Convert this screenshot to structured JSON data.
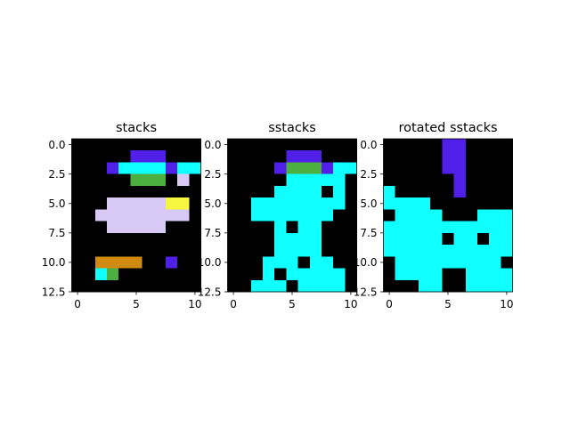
{
  "palette": {
    "0": "#000000",
    "1": "#5020e8",
    "2": "#10ffff",
    "3": "#d8c8f4",
    "4": "#4caf40",
    "5": "#f6f640",
    "6": "#3a88f0",
    "7": "#b0207e",
    "8": "#2c69ae",
    "9": "#d08a10"
  },
  "chart_data": [
    {
      "type": "heatmap",
      "title": "stacks",
      "xlim": [
        -0.5,
        10.5
      ],
      "ylim": [
        12.5,
        -0.5
      ],
      "xticks": [
        0,
        5,
        10
      ],
      "xtick_labels": [
        "0",
        "5",
        "10"
      ],
      "yticks": [
        0,
        2.5,
        5,
        7.5,
        10,
        12.5
      ],
      "ytick_labels": [
        "0.0",
        "2.5",
        "5.0",
        "7.5",
        "10.0",
        "12.5"
      ],
      "grid": [
        "00000000000",
        "00000111000",
        "00012222122",
        "00000444030",
        "00000000000",
        "00033333550",
        "00333333330",
        "00033333000",
        "00000000000",
        "00000000000",
        "00999900100",
        "00240000000",
        "00000000000"
      ]
    },
    {
      "type": "heatmap",
      "title": "sstacks",
      "xlim": [
        -0.5,
        10.5
      ],
      "ylim": [
        12.5,
        -0.5
      ],
      "xticks": [
        0,
        5,
        10
      ],
      "xtick_labels": [
        "0",
        "5",
        "10"
      ],
      "yticks": [
        0,
        2.5,
        5,
        7.5,
        10,
        12.5
      ],
      "ytick_labels": [
        "0.0",
        "2.5",
        "5.0",
        "7.5",
        "10.0",
        "12.5"
      ],
      "grid": [
        "00000000000",
        "00000111000",
        "00001444122",
        "00000222220",
        "00002222020",
        "00222222220",
        "00222222200",
        "00002022000",
        "00002222000",
        "00002222000",
        "00022202200",
        "00020222220",
        "00222022220"
      ]
    },
    {
      "type": "heatmap",
      "title": "rotated sstacks",
      "xlim": [
        -0.5,
        10.5
      ],
      "ylim": [
        12.5,
        -0.5
      ],
      "xticks": [
        0,
        5,
        10
      ],
      "xtick_labels": [
        "0",
        "5",
        "10"
      ],
      "yticks": [
        0,
        2.5,
        5,
        7.5,
        10,
        12.5
      ],
      "ytick_labels": [
        "0.0",
        "2.5",
        "5.0",
        "7.5",
        "10.0",
        "12.5"
      ],
      "grid": [
        "00000110000",
        "00000110000",
        "00000110000",
        "00000010000",
        "20000010000",
        "22220000000",
        "02222000222",
        "22222222222",
        "22222022022",
        "22222222222",
        "02222222220",
        "02222002222",
        "00022002222"
      ]
    }
  ]
}
